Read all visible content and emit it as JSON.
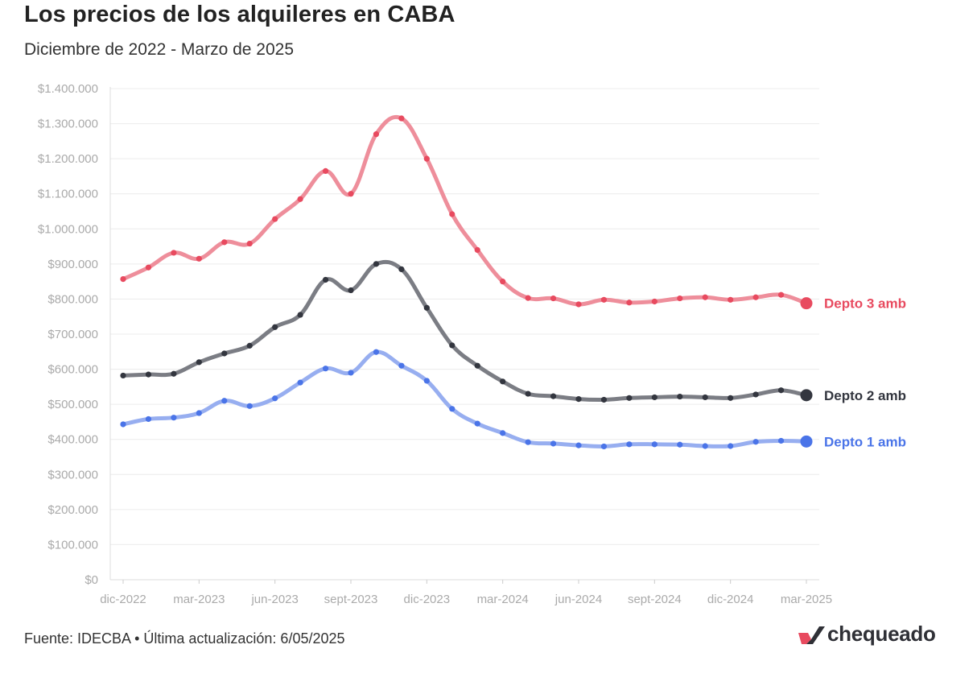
{
  "title": "Los precios de los alquileres en CABA",
  "subtitle": "Diciembre de 2022 - Marzo de 2025",
  "footer": "Fuente: IDECBA • Última actualización: 6/05/2025",
  "logo": {
    "text": "chequeado",
    "icon": "chequeado-check-mark-icon",
    "colors": [
      "#e84a5f",
      "#2f3036"
    ]
  },
  "chart_data": {
    "type": "line",
    "title": "Los precios de los alquileres en CABA",
    "subtitle": "Diciembre de 2022 - Marzo de 2025",
    "xlabel": "",
    "ylabel": "",
    "ylim": [
      0,
      1400000
    ],
    "yticks": [
      0,
      100000,
      200000,
      300000,
      400000,
      500000,
      600000,
      700000,
      800000,
      900000,
      1000000,
      1100000,
      1200000,
      1300000,
      1400000
    ],
    "ytick_labels": [
      "$0",
      "$100.000",
      "$200.000",
      "$300.000",
      "$400.000",
      "$500.000",
      "$600.000",
      "$700.000",
      "$800.000",
      "$900.000",
      "$1.000.000",
      "$1.100.000",
      "$1.200.000",
      "$1.300.000",
      "$1.400.000"
    ],
    "x": [
      "dic-2022",
      "ene-2023",
      "feb-2023",
      "mar-2023",
      "abr-2023",
      "may-2023",
      "jun-2023",
      "jul-2023",
      "ago-2023",
      "sept-2023",
      "oct-2023",
      "nov-2023",
      "dic-2023",
      "ene-2024",
      "feb-2024",
      "mar-2024",
      "abr-2024",
      "may-2024",
      "jun-2024",
      "jul-2024",
      "ago-2024",
      "sept-2024",
      "oct-2024",
      "nov-2024",
      "dic-2024",
      "ene-2025",
      "feb-2025",
      "mar-2025"
    ],
    "xtick_labels": [
      "dic-2022",
      "mar-2023",
      "jun-2023",
      "sept-2023",
      "dic-2023",
      "mar-2024",
      "jun-2024",
      "sept-2024",
      "dic-2024",
      "mar-2025"
    ],
    "grid": true,
    "legend": "end-of-line labels",
    "series": [
      {
        "name": "Depto 3 amb",
        "color": "#e84a5f",
        "line_color": "#ee8e9b",
        "values": [
          857000,
          890000,
          932000,
          915000,
          962000,
          958000,
          1028000,
          1085000,
          1165000,
          1100000,
          1270000,
          1315000,
          1200000,
          1042000,
          940000,
          850000,
          803000,
          802000,
          785000,
          798000,
          790000,
          793000,
          802000,
          805000,
          798000,
          805000,
          812000,
          788000
        ]
      },
      {
        "name": "Depto 2 amb",
        "color": "#33363f",
        "line_color": "#7b7d84",
        "values": [
          582000,
          585000,
          587000,
          620000,
          645000,
          667000,
          720000,
          755000,
          855000,
          825000,
          900000,
          885000,
          775000,
          668000,
          610000,
          565000,
          530000,
          523000,
          515000,
          513000,
          518000,
          520000,
          522000,
          520000,
          518000,
          528000,
          540000,
          526000
        ]
      },
      {
        "name": "Depto 1 amb",
        "color": "#4a74e8",
        "line_color": "#97aef0",
        "values": [
          443000,
          458000,
          462000,
          475000,
          510000,
          495000,
          517000,
          562000,
          602000,
          590000,
          649000,
          610000,
          567000,
          487000,
          445000,
          418000,
          392000,
          388000,
          383000,
          380000,
          386000,
          386000,
          385000,
          381000,
          381000,
          393000,
          396000,
          394000
        ]
      }
    ]
  }
}
